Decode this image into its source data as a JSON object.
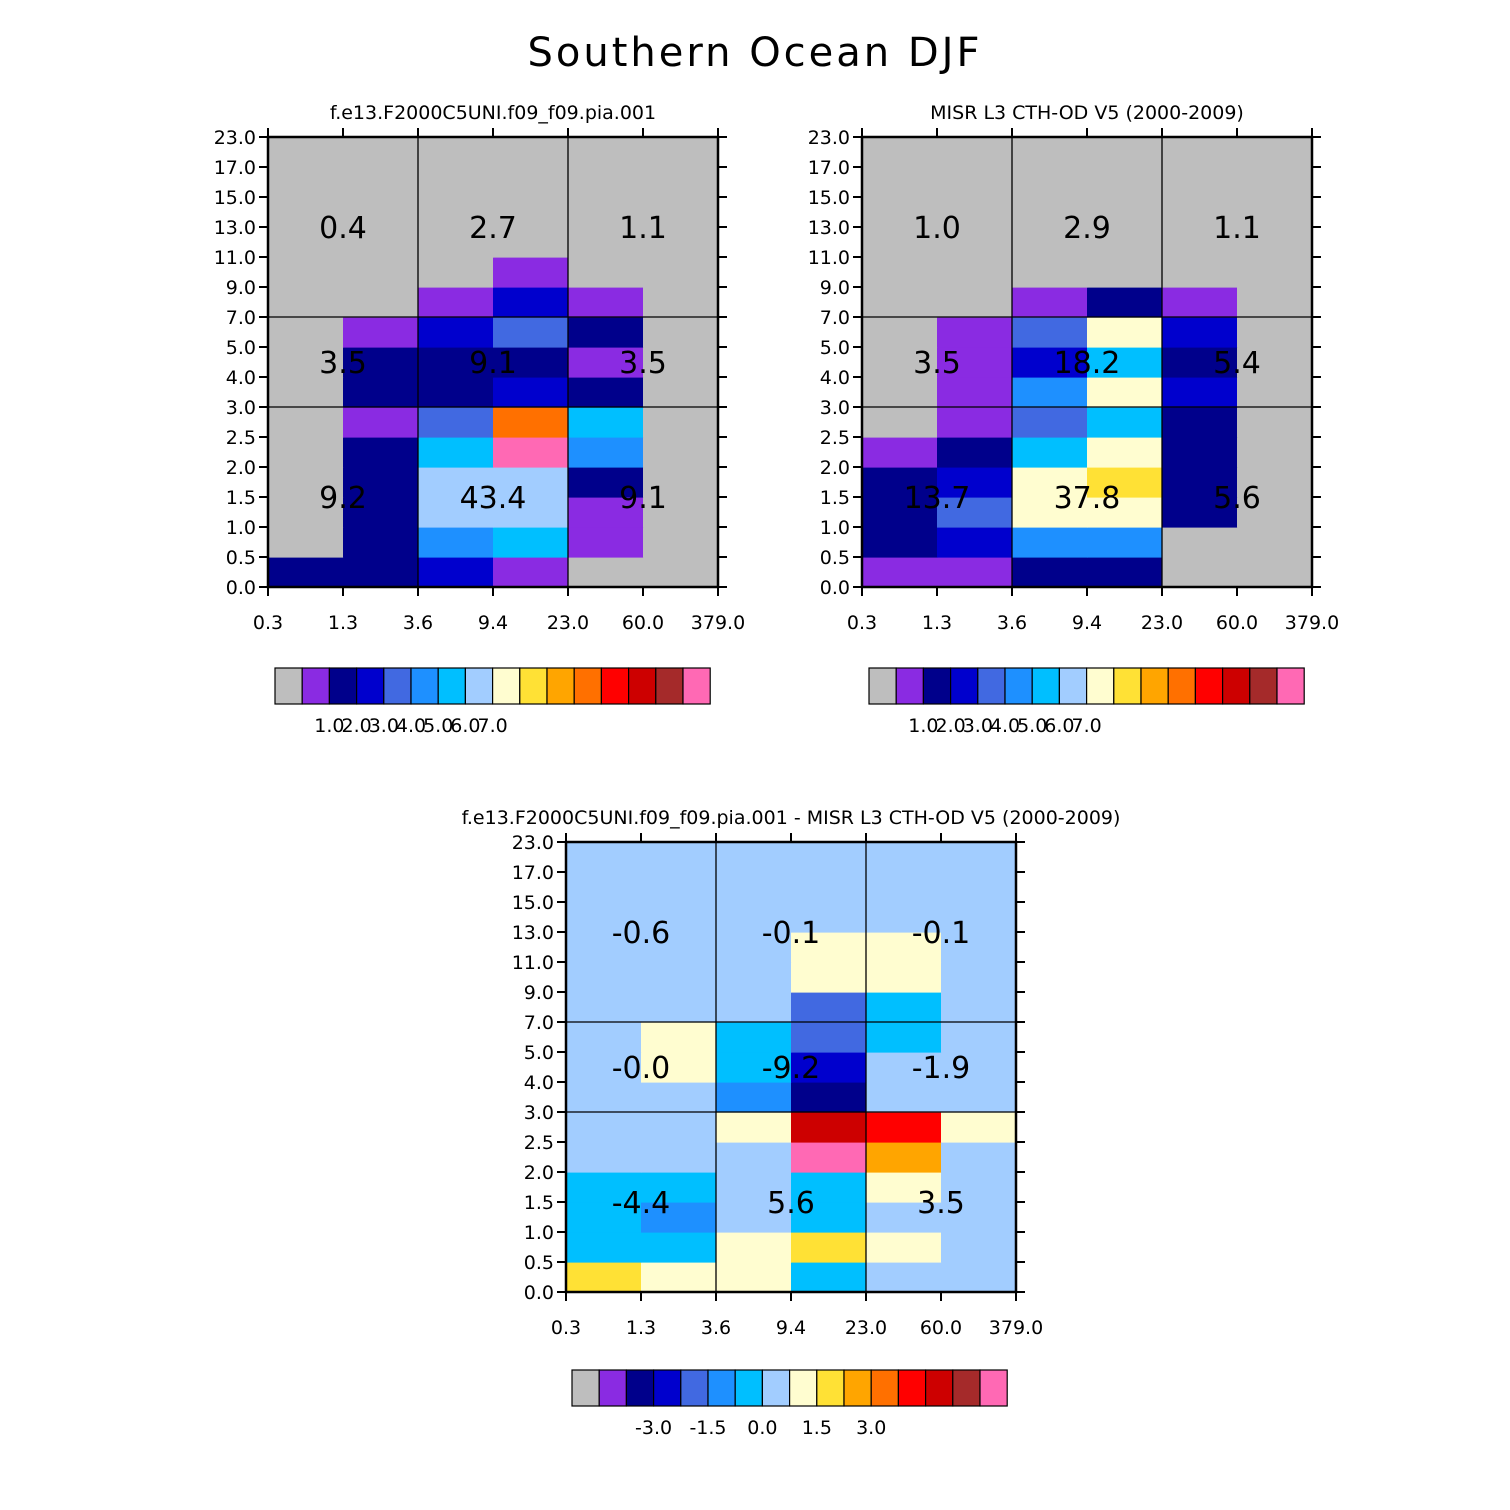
{
  "figure_title": "Southern Ocean DJF",
  "colors": {
    "abs_palette": [
      "#bebebe",
      "#8a2be2",
      "#00008b",
      "#0000cd",
      "#4169e1",
      "#1e90ff",
      "#00bfff",
      "#a2cdff",
      "#fffdd0",
      "#ffe135",
      "#ffa500",
      "#ff7000",
      "#ff0000",
      "#cd0000",
      "#a52a2a",
      "#ff69b4"
    ],
    "diff_palette": [
      "#bebebe",
      "#8a2be2",
      "#00008b",
      "#0000cd",
      "#4169e1",
      "#1e90ff",
      "#00bfff",
      "#a2cdff",
      "#fffdd0",
      "#ffe135",
      "#ffa500",
      "#ff7000",
      "#ff0000",
      "#cd0000",
      "#a52a2a",
      "#ff69b4"
    ]
  },
  "chart_data": [
    {
      "type": "heatmap",
      "title": "f.e13.F2000C5UNI.f09_f09.pia.001",
      "x_ticks": [
        "0.3",
        "1.3",
        "3.6",
        "9.4",
        "23.0",
        "60.0",
        "379.0"
      ],
      "y_ticks": [
        "0.0",
        "0.5",
        "1.0",
        "1.5",
        "2.0",
        "2.5",
        "3.0",
        "4.0",
        "5.0",
        "7.0",
        "9.0",
        "11.0",
        "13.0",
        "15.0",
        "17.0",
        "23.0"
      ],
      "cells_color_index": [
        [
          2,
          2,
          3,
          1,
          0,
          0
        ],
        [
          0,
          2,
          5,
          6,
          1,
          0
        ],
        [
          0,
          2,
          7,
          7,
          1,
          0
        ],
        [
          0,
          2,
          7,
          7,
          2,
          0
        ],
        [
          0,
          2,
          6,
          15,
          5,
          0
        ],
        [
          0,
          1,
          4,
          11,
          6,
          0
        ],
        [
          0,
          2,
          2,
          3,
          2,
          0
        ],
        [
          0,
          2,
          2,
          2,
          1,
          0
        ],
        [
          0,
          1,
          3,
          4,
          2,
          0
        ],
        [
          0,
          0,
          1,
          3,
          1,
          0
        ],
        [
          0,
          0,
          0,
          1,
          0,
          0
        ],
        [
          0,
          0,
          0,
          0,
          0,
          0
        ],
        [
          0,
          0,
          0,
          0,
          0,
          0
        ],
        [
          0,
          0,
          0,
          0,
          0,
          0
        ],
        [
          0,
          0,
          0,
          0,
          0,
          0
        ]
      ],
      "group_values": [
        [
          "9.2",
          "43.4",
          "9.1"
        ],
        [
          "3.5",
          "9.1",
          "3.5"
        ],
        [
          "0.4",
          "2.7",
          "1.1"
        ]
      ],
      "colorbar_labels": [
        "1.0",
        "2.0",
        "3.0",
        "4.0",
        "5.0",
        "6.0",
        "7.0"
      ]
    },
    {
      "type": "heatmap",
      "title": "MISR L3 CTH-OD V5 (2000-2009)",
      "x_ticks": [
        "0.3",
        "1.3",
        "3.6",
        "9.4",
        "23.0",
        "60.0",
        "379.0"
      ],
      "y_ticks": [
        "0.0",
        "0.5",
        "1.0",
        "1.5",
        "2.0",
        "2.5",
        "3.0",
        "4.0",
        "5.0",
        "7.0",
        "9.0",
        "11.0",
        "13.0",
        "15.0",
        "17.0",
        "23.0"
      ],
      "cells_color_index": [
        [
          1,
          1,
          2,
          2,
          0,
          0
        ],
        [
          2,
          3,
          5,
          5,
          0,
          0
        ],
        [
          2,
          4,
          8,
          8,
          2,
          0
        ],
        [
          2,
          3,
          8,
          9,
          2,
          0
        ],
        [
          1,
          2,
          6,
          8,
          2,
          0
        ],
        [
          0,
          1,
          4,
          6,
          2,
          0
        ],
        [
          0,
          1,
          5,
          8,
          3,
          0
        ],
        [
          0,
          1,
          3,
          6,
          2,
          0
        ],
        [
          0,
          1,
          4,
          8,
          3,
          0
        ],
        [
          0,
          0,
          1,
          2,
          1,
          0
        ],
        [
          0,
          0,
          0,
          0,
          0,
          0
        ],
        [
          0,
          0,
          0,
          0,
          0,
          0
        ],
        [
          0,
          0,
          0,
          0,
          0,
          0
        ],
        [
          0,
          0,
          0,
          0,
          0,
          0
        ],
        [
          0,
          0,
          0,
          0,
          0,
          0
        ]
      ],
      "group_values": [
        [
          "13.7",
          "37.8",
          "5.6"
        ],
        [
          "3.5",
          "18.2",
          "5.4"
        ],
        [
          "1.0",
          "2.9",
          "1.1"
        ]
      ],
      "colorbar_labels": [
        "1.0",
        "2.0",
        "3.0",
        "4.0",
        "5.0",
        "6.0",
        "7.0"
      ]
    },
    {
      "type": "heatmap",
      "title": "f.e13.F2000C5UNI.f09_f09.pia.001 - MISR L3 CTH-OD V5 (2000-2009)",
      "x_ticks": [
        "0.3",
        "1.3",
        "3.6",
        "9.4",
        "23.0",
        "60.0",
        "379.0"
      ],
      "y_ticks": [
        "0.0",
        "0.5",
        "1.0",
        "1.5",
        "2.0",
        "2.5",
        "3.0",
        "4.0",
        "5.0",
        "7.0",
        "9.0",
        "11.0",
        "13.0",
        "15.0",
        "17.0",
        "23.0"
      ],
      "cells_color_index": [
        [
          9,
          8,
          8,
          6,
          7,
          7
        ],
        [
          6,
          6,
          8,
          9,
          8,
          7
        ],
        [
          6,
          5,
          7,
          6,
          7,
          7
        ],
        [
          6,
          6,
          7,
          6,
          8,
          7
        ],
        [
          7,
          7,
          7,
          15,
          10,
          7
        ],
        [
          7,
          7,
          8,
          13,
          12,
          8
        ],
        [
          7,
          7,
          5,
          2,
          7,
          7
        ],
        [
          7,
          8,
          6,
          3,
          7,
          7
        ],
        [
          7,
          8,
          6,
          4,
          6,
          7
        ],
        [
          7,
          7,
          7,
          4,
          6,
          7
        ],
        [
          7,
          7,
          7,
          8,
          8,
          7
        ],
        [
          7,
          7,
          7,
          8,
          8,
          7
        ],
        [
          7,
          7,
          7,
          7,
          7,
          7
        ],
        [
          7,
          7,
          7,
          7,
          7,
          7
        ],
        [
          7,
          7,
          7,
          7,
          7,
          7
        ]
      ],
      "group_values": [
        [
          "-4.4",
          "5.6",
          "3.5"
        ],
        [
          "-0.0",
          "-9.2",
          "-1.9"
        ],
        [
          "-0.6",
          "-0.1",
          "-0.1"
        ]
      ],
      "colorbar_labels": [
        "-3.0",
        "-1.5",
        "0.0",
        "1.5",
        "3.0"
      ]
    }
  ]
}
